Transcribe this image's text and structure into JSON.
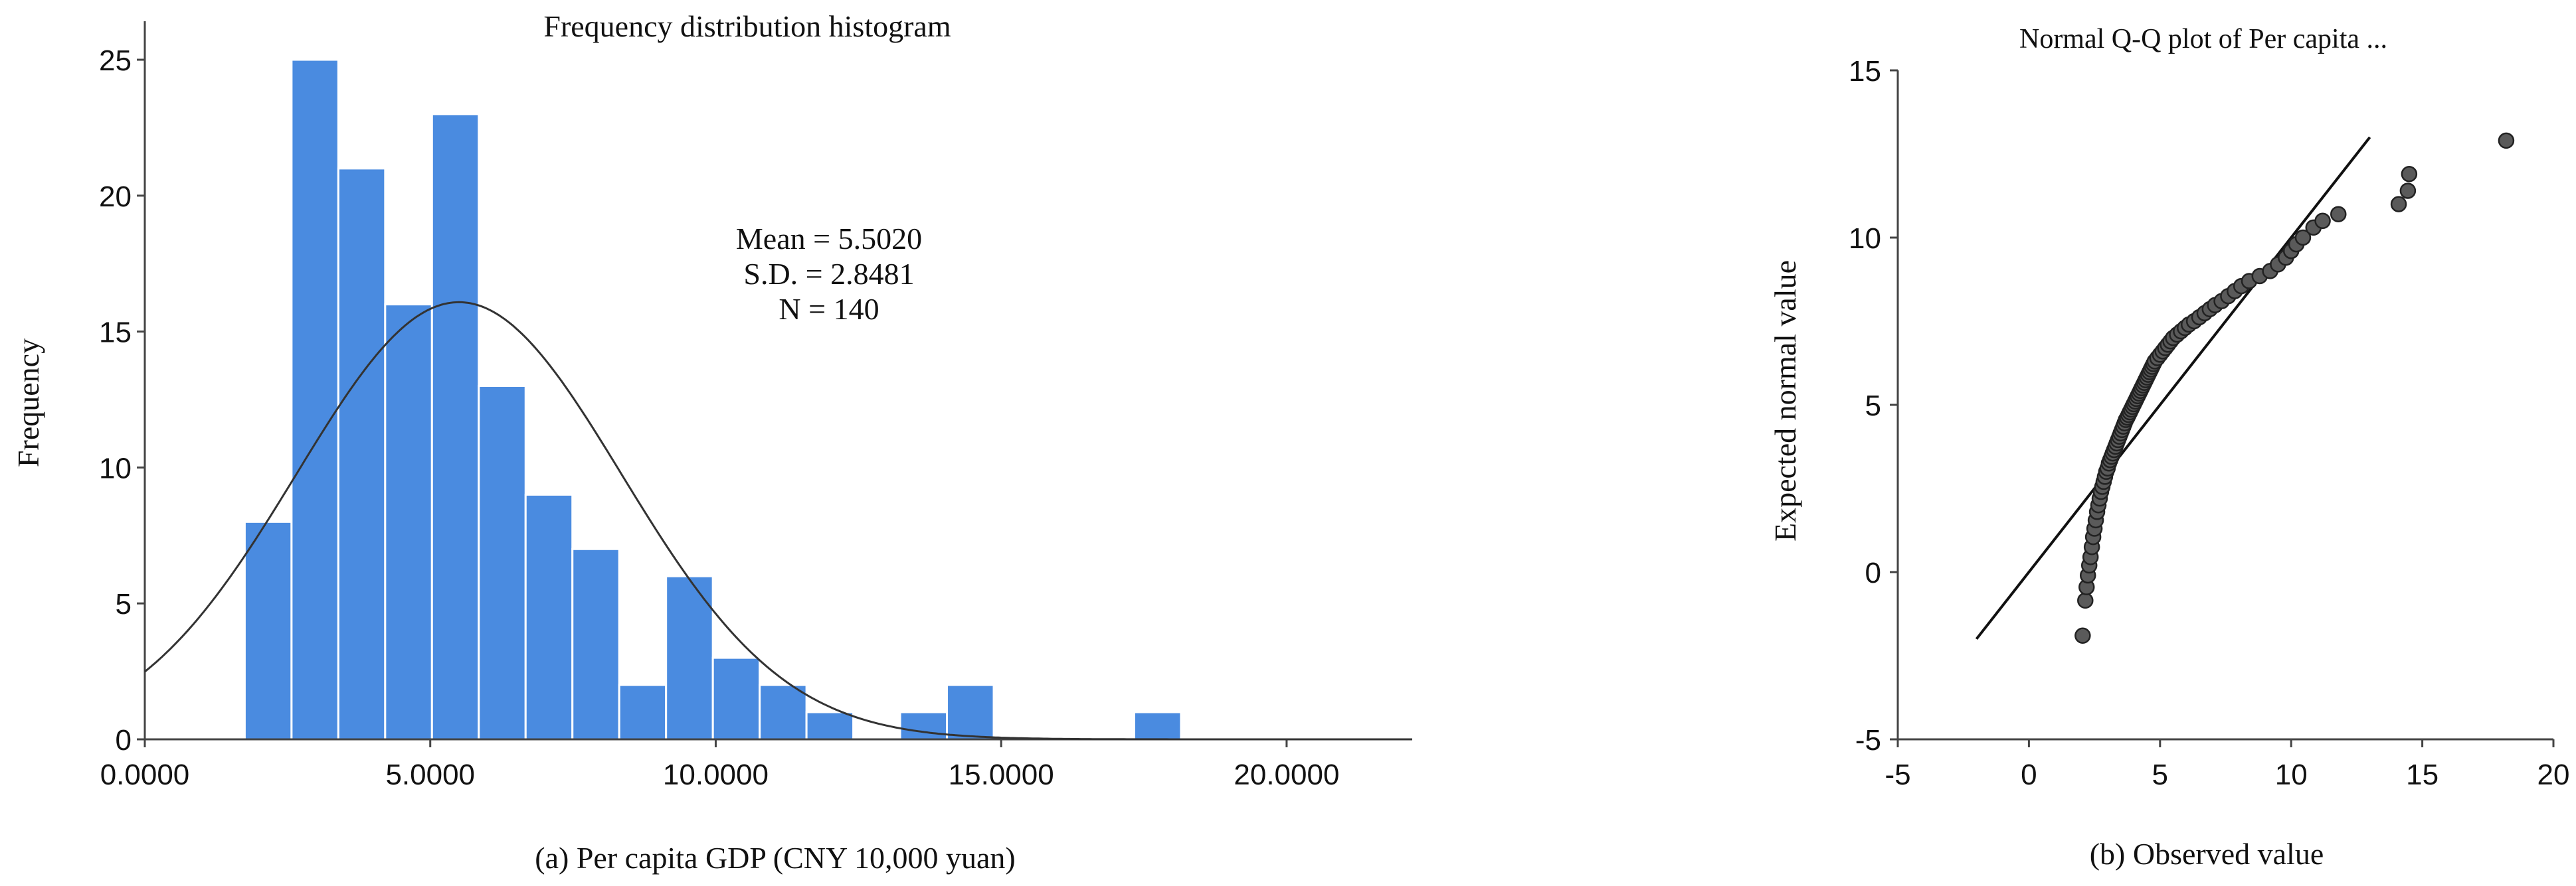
{
  "colors": {
    "bar_fill": "#4a8be0",
    "bar_edge": "#ffffff",
    "axis": "#444444",
    "curve": "#333333",
    "point_fill": "#5a5a5a",
    "point_edge": "#222222",
    "line": "#111111"
  },
  "chart_data": [
    {
      "type": "bar",
      "title": "Frequency distribution histogram",
      "xlabel": "(a) Per capita GDP (CNY 10,000 yuan)",
      "ylabel": "Frequency",
      "xlim": [
        0,
        22.2
      ],
      "ylim": [
        0,
        25
      ],
      "x_ticks": [
        0,
        5,
        10,
        15,
        20
      ],
      "x_tick_labels": [
        "0.0000",
        "5.0000",
        "10.0000",
        "15.0000",
        "20.0000"
      ],
      "y_ticks": [
        0,
        5,
        10,
        15,
        20,
        25
      ],
      "y_tick_labels": [
        "0",
        "5",
        "10",
        "15",
        "20",
        "25"
      ],
      "bin_width": 0.82,
      "bins": [
        {
          "start": 1.75,
          "count": 8
        },
        {
          "start": 2.57,
          "count": 25
        },
        {
          "start": 3.39,
          "count": 21
        },
        {
          "start": 4.21,
          "count": 16
        },
        {
          "start": 5.03,
          "count": 23
        },
        {
          "start": 5.85,
          "count": 13
        },
        {
          "start": 6.67,
          "count": 9
        },
        {
          "start": 7.49,
          "count": 7
        },
        {
          "start": 8.31,
          "count": 2
        },
        {
          "start": 9.13,
          "count": 6
        },
        {
          "start": 9.95,
          "count": 3
        },
        {
          "start": 10.77,
          "count": 2
        },
        {
          "start": 11.59,
          "count": 1
        },
        {
          "start": 12.41,
          "count": 0
        },
        {
          "start": 13.23,
          "count": 1
        },
        {
          "start": 14.05,
          "count": 2
        },
        {
          "start": 14.87,
          "count": 0
        },
        {
          "start": 15.69,
          "count": 0
        },
        {
          "start": 16.51,
          "count": 0
        },
        {
          "start": 17.33,
          "count": 1
        }
      ],
      "normal_curve": {
        "mean": 5.502,
        "sd": 2.8481,
        "n": 140
      },
      "annotations": [
        "Mean = 5.5020",
        "S.D. = 2.8481",
        "N = 140"
      ],
      "grid": false,
      "legend": "none"
    },
    {
      "type": "scatter",
      "title": "Normal Q-Q plot of Per capita ...",
      "xlabel": "(b) Observed value",
      "ylabel": "Expected normal value",
      "xlim": [
        -5,
        20
      ],
      "ylim": [
        -5,
        15
      ],
      "x_ticks": [
        -5,
        0,
        5,
        10,
        15,
        20
      ],
      "x_tick_labels": [
        "-5",
        "0",
        "5",
        "10",
        "15",
        "20"
      ],
      "y_ticks": [
        -5,
        0,
        5,
        10,
        15
      ],
      "y_tick_labels": [
        "-5",
        "0",
        "5",
        "10",
        "15"
      ],
      "reference_line": {
        "x": [
          -2,
          13
        ],
        "y": [
          -2,
          13
        ]
      },
      "points": [
        [
          2.05,
          -1.9
        ],
        [
          2.15,
          -0.85
        ],
        [
          2.2,
          -0.45
        ],
        [
          2.25,
          -0.1
        ],
        [
          2.3,
          0.2
        ],
        [
          2.35,
          0.45
        ],
        [
          2.4,
          0.75
        ],
        [
          2.45,
          1.05
        ],
        [
          2.5,
          1.3
        ],
        [
          2.55,
          1.55
        ],
        [
          2.6,
          1.8
        ],
        [
          2.65,
          2.0
        ],
        [
          2.7,
          2.2
        ],
        [
          2.75,
          2.4
        ],
        [
          2.8,
          2.55
        ],
        [
          2.85,
          2.7
        ],
        [
          2.9,
          2.85
        ],
        [
          2.95,
          3.0
        ],
        [
          3.0,
          3.1
        ],
        [
          3.05,
          3.25
        ],
        [
          3.1,
          3.35
        ],
        [
          3.15,
          3.45
        ],
        [
          3.2,
          3.55
        ],
        [
          3.25,
          3.65
        ],
        [
          3.3,
          3.75
        ],
        [
          3.35,
          3.85
        ],
        [
          3.4,
          3.95
        ],
        [
          3.45,
          4.05
        ],
        [
          3.5,
          4.15
        ],
        [
          3.55,
          4.25
        ],
        [
          3.6,
          4.35
        ],
        [
          3.65,
          4.45
        ],
        [
          3.7,
          4.55
        ],
        [
          3.75,
          4.62
        ],
        [
          3.8,
          4.7
        ],
        [
          3.85,
          4.78
        ],
        [
          3.9,
          4.86
        ],
        [
          3.95,
          4.94
        ],
        [
          4.0,
          5.02
        ],
        [
          4.05,
          5.1
        ],
        [
          4.1,
          5.18
        ],
        [
          4.15,
          5.26
        ],
        [
          4.2,
          5.34
        ],
        [
          4.25,
          5.42
        ],
        [
          4.3,
          5.5
        ],
        [
          4.35,
          5.58
        ],
        [
          4.4,
          5.66
        ],
        [
          4.45,
          5.74
        ],
        [
          4.5,
          5.82
        ],
        [
          4.55,
          5.9
        ],
        [
          4.6,
          5.98
        ],
        [
          4.65,
          6.06
        ],
        [
          4.7,
          6.14
        ],
        [
          4.75,
          6.22
        ],
        [
          4.8,
          6.3
        ],
        [
          4.9,
          6.4
        ],
        [
          5.0,
          6.5
        ],
        [
          5.1,
          6.6
        ],
        [
          5.2,
          6.7
        ],
        [
          5.3,
          6.8
        ],
        [
          5.4,
          6.9
        ],
        [
          5.5,
          7.0
        ],
        [
          5.65,
          7.1
        ],
        [
          5.8,
          7.2
        ],
        [
          5.95,
          7.3
        ],
        [
          6.1,
          7.4
        ],
        [
          6.3,
          7.5
        ],
        [
          6.5,
          7.62
        ],
        [
          6.7,
          7.74
        ],
        [
          6.9,
          7.86
        ],
        [
          7.1,
          7.98
        ],
        [
          7.35,
          8.1
        ],
        [
          7.6,
          8.25
        ],
        [
          7.85,
          8.4
        ],
        [
          8.1,
          8.55
        ],
        [
          8.4,
          8.7
        ],
        [
          8.8,
          8.85
        ],
        [
          9.2,
          9.0
        ],
        [
          9.5,
          9.2
        ],
        [
          9.8,
          9.4
        ],
        [
          10.0,
          9.6
        ],
        [
          10.2,
          9.8
        ],
        [
          10.45,
          10.0
        ],
        [
          10.85,
          10.3
        ],
        [
          11.2,
          10.5
        ],
        [
          11.8,
          10.7
        ],
        [
          14.1,
          11.0
        ],
        [
          14.45,
          11.4
        ],
        [
          14.5,
          11.9
        ],
        [
          18.2,
          12.9
        ]
      ],
      "grid": false,
      "legend": "none"
    }
  ]
}
